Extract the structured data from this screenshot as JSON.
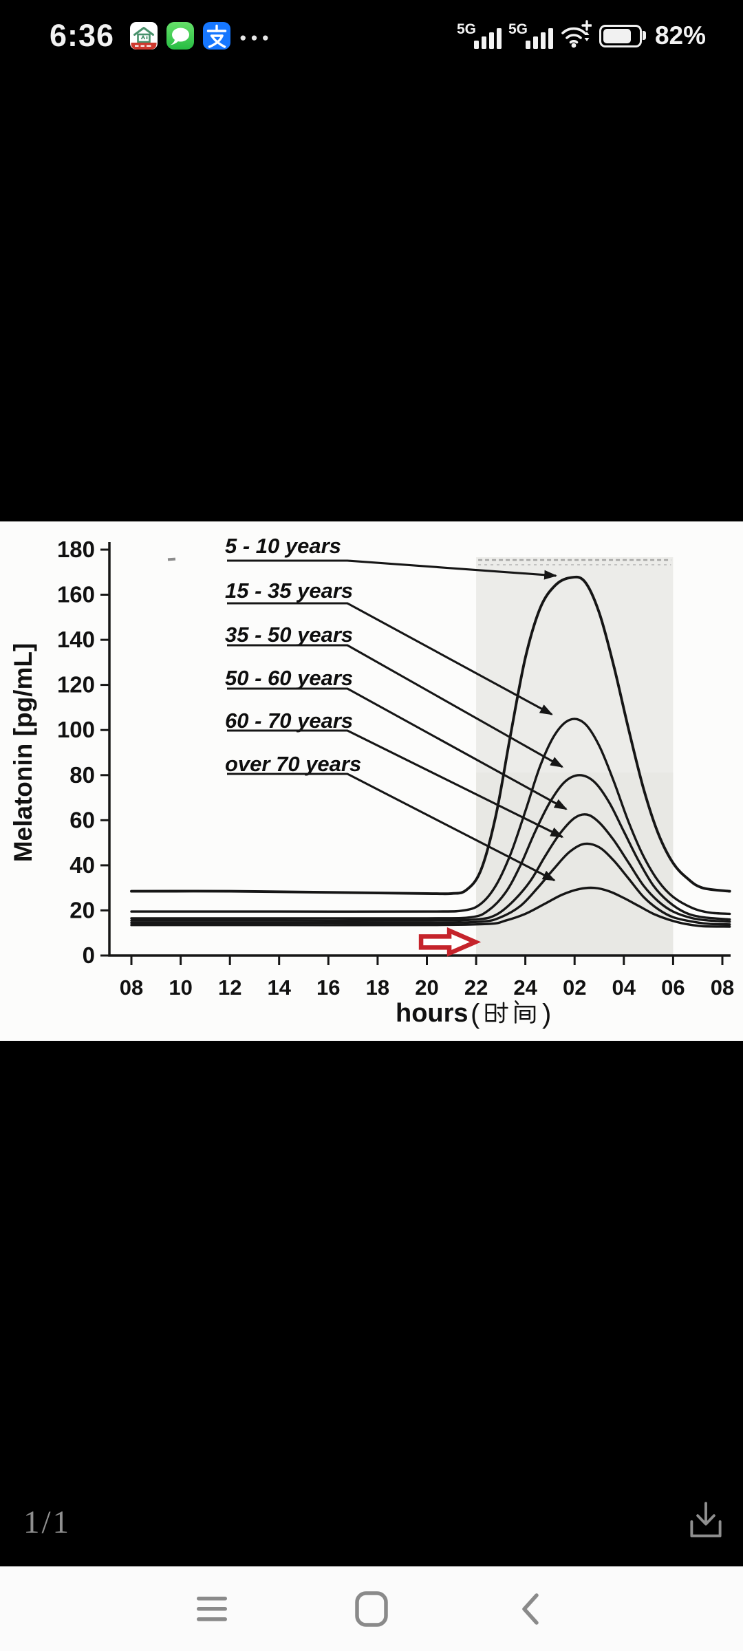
{
  "status_bar": {
    "time": "6:36",
    "more_notifications_glyph": "●●●",
    "app_notification_icons": [
      {
        "name": "smart-home-app-icon",
        "bg": "#ffffff",
        "accent": "#48916b",
        "banner": "#cf3a2e"
      },
      {
        "name": "messages-app-icon",
        "bg": "#3fce52"
      },
      {
        "name": "alipay-app-icon",
        "bg": "#1677ff",
        "glyph": "支"
      }
    ],
    "signals": [
      {
        "label": "5G",
        "bars": 4,
        "bars_filled": 4
      },
      {
        "label": "5G",
        "bars": 4,
        "bars_filled": 4
      }
    ],
    "wifi": {
      "plus_badge": "+"
    },
    "battery": {
      "percent_text": "82%",
      "level": 0.82
    }
  },
  "chart_data": {
    "type": "line",
    "title": "",
    "ylabel": "Melatonin [pg/mL]",
    "xlabel": "hours （时间）",
    "xlabel_latin": "hours",
    "xlabel_cjk": "（时间）",
    "ylim": [
      0,
      180
    ],
    "y_ticks": [
      0,
      20,
      40,
      60,
      80,
      100,
      120,
      140,
      160,
      180
    ],
    "x_tick_labels": [
      "08",
      "10",
      "12",
      "14",
      "16",
      "18",
      "20",
      "22",
      "24",
      "02",
      "04",
      "06",
      "08"
    ],
    "x_tick_hours": [
      8,
      10,
      12,
      14,
      16,
      18,
      20,
      22,
      24,
      26,
      28,
      30,
      32
    ],
    "x_encoding": "clock time, continuous from 08:00 through 08:00 next day (26 = 02:00)",
    "grid": false,
    "legend_position": "upper-left labels with leader arrows pointing to each curve peak",
    "night_band": {
      "start_hour": 22,
      "end_hour": 30,
      "start_label": "22",
      "end_label": "06",
      "color": "#ecece9"
    },
    "series": [
      {
        "label": "5 - 10 years",
        "baseline": 28,
        "peak_value": 168,
        "peak_time": "~02:00",
        "points": [
          [
            8,
            28.5
          ],
          [
            12,
            28.5
          ],
          [
            16,
            28
          ],
          [
            20,
            27.5
          ],
          [
            21,
            27.5
          ],
          [
            21.6,
            29
          ],
          [
            22.2,
            38
          ],
          [
            22.8,
            62
          ],
          [
            23.4,
            98
          ],
          [
            24,
            132
          ],
          [
            24.6,
            154
          ],
          [
            25.2,
            164
          ],
          [
            25.8,
            167.5
          ],
          [
            26.4,
            166
          ],
          [
            27,
            152
          ],
          [
            27.6,
            128
          ],
          [
            28.2,
            100
          ],
          [
            28.8,
            74
          ],
          [
            29.4,
            54
          ],
          [
            30,
            41
          ],
          [
            30.6,
            34
          ],
          [
            31.2,
            30
          ],
          [
            32.3,
            28.5
          ]
        ]
      },
      {
        "label": "15 - 35 years",
        "baseline": 19.5,
        "peak_value": 105,
        "peak_time": "~01:50",
        "points": [
          [
            8,
            19.5
          ],
          [
            14,
            19.5
          ],
          [
            20,
            19.5
          ],
          [
            21.5,
            20
          ],
          [
            22.2,
            23
          ],
          [
            22.8,
            31
          ],
          [
            23.4,
            45
          ],
          [
            24,
            64
          ],
          [
            24.6,
            84
          ],
          [
            25.2,
            98
          ],
          [
            25.8,
            104.5
          ],
          [
            26.4,
            103
          ],
          [
            27,
            93
          ],
          [
            27.6,
            77
          ],
          [
            28.2,
            59
          ],
          [
            28.8,
            44
          ],
          [
            29.4,
            33
          ],
          [
            30,
            26
          ],
          [
            30.8,
            21
          ],
          [
            31.5,
            19
          ],
          [
            32.3,
            18.5
          ]
        ]
      },
      {
        "label": "35 - 50 years",
        "baseline": 16.5,
        "peak_value": 80,
        "peak_time": "~02:00",
        "points": [
          [
            8,
            16.5
          ],
          [
            14,
            16.5
          ],
          [
            20,
            16.5
          ],
          [
            21.8,
            17
          ],
          [
            22.5,
            20
          ],
          [
            23.2,
            28
          ],
          [
            23.8,
            40
          ],
          [
            24.4,
            55
          ],
          [
            25,
            68
          ],
          [
            25.6,
            77
          ],
          [
            26.2,
            80
          ],
          [
            26.8,
            77
          ],
          [
            27.4,
            68
          ],
          [
            28,
            55
          ],
          [
            28.6,
            42
          ],
          [
            29.2,
            31
          ],
          [
            29.8,
            24
          ],
          [
            30.5,
            19
          ],
          [
            31.2,
            17
          ],
          [
            32.3,
            16
          ]
        ]
      },
      {
        "label": "50 - 60 years",
        "baseline": 15.5,
        "peak_value": 63,
        "peak_time": "~02:15",
        "points": [
          [
            8,
            15.5
          ],
          [
            14,
            15.5
          ],
          [
            20,
            15.5
          ],
          [
            22,
            16
          ],
          [
            22.8,
            18
          ],
          [
            23.5,
            24
          ],
          [
            24.2,
            33
          ],
          [
            24.8,
            44
          ],
          [
            25.4,
            54
          ],
          [
            26,
            61
          ],
          [
            26.5,
            62.5
          ],
          [
            27,
            59
          ],
          [
            27.6,
            51
          ],
          [
            28.2,
            41
          ],
          [
            28.8,
            31
          ],
          [
            29.4,
            24
          ],
          [
            30,
            19.5
          ],
          [
            30.8,
            16.5
          ],
          [
            31.5,
            15.5
          ],
          [
            32.3,
            15
          ]
        ]
      },
      {
        "label": "60 - 70 years",
        "baseline": 14.5,
        "peak_value": 50,
        "peak_time": "~02:20",
        "points": [
          [
            8,
            14.5
          ],
          [
            14,
            14.5
          ],
          [
            20,
            14.5
          ],
          [
            22.2,
            15
          ],
          [
            23,
            17
          ],
          [
            23.8,
            22
          ],
          [
            24.5,
            30
          ],
          [
            25.2,
            39
          ],
          [
            25.8,
            46
          ],
          [
            26.4,
            49.5
          ],
          [
            27,
            48
          ],
          [
            27.6,
            42
          ],
          [
            28.2,
            34
          ],
          [
            28.8,
            26
          ],
          [
            29.4,
            20.5
          ],
          [
            30,
            17
          ],
          [
            30.8,
            15
          ],
          [
            31.5,
            14
          ],
          [
            32.3,
            13.8
          ]
        ]
      },
      {
        "label": "over 70 years",
        "baseline": 13.5,
        "peak_value": 30,
        "peak_time": "~02:30",
        "points": [
          [
            8,
            13.5
          ],
          [
            14,
            13.5
          ],
          [
            20,
            13.5
          ],
          [
            22.5,
            14
          ],
          [
            23.2,
            15.5
          ],
          [
            24,
            18.5
          ],
          [
            24.8,
            23
          ],
          [
            25.5,
            27
          ],
          [
            26.2,
            29.5
          ],
          [
            26.8,
            30
          ],
          [
            27.4,
            28.5
          ],
          [
            28,
            25.5
          ],
          [
            28.6,
            22
          ],
          [
            29.2,
            18.5
          ],
          [
            29.8,
            16
          ],
          [
            30.5,
            14
          ],
          [
            31.2,
            13
          ],
          [
            32.3,
            12.8
          ]
        ]
      }
    ],
    "annotations": [
      {
        "name": "red-onset-arrow",
        "shape": "block-arrow-right",
        "color": "#c5232b",
        "at_hour": 21,
        "at_value": 6,
        "points_toward_hour": 22
      }
    ]
  },
  "viewer": {
    "page_indicator": "1/1"
  },
  "nav_bar": {
    "icons": [
      "menu-recents-icon",
      "home-pill-icon",
      "back-chevron-icon"
    ]
  }
}
